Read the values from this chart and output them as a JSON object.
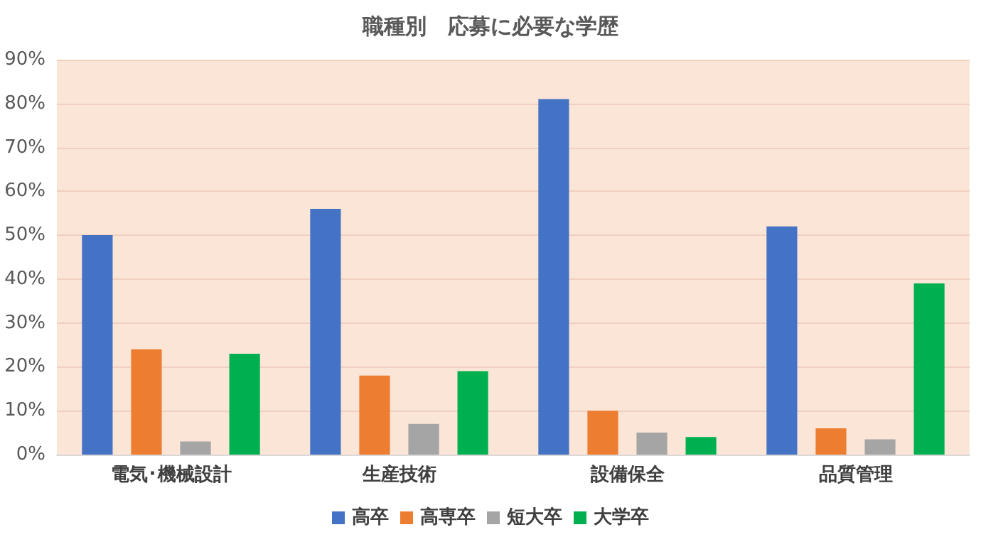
{
  "chart_data": {
    "type": "bar",
    "title": "職種別　応募に必要な学歴",
    "categories": [
      "電気･機械設計",
      "生産技術",
      "設備保全",
      "品質管理"
    ],
    "series": [
      {
        "name": "高卒",
        "color": "#4472c4",
        "values": [
          50,
          56,
          81,
          52
        ]
      },
      {
        "name": "高専卒",
        "color": "#ed7d31",
        "values": [
          24,
          18,
          10,
          6
        ]
      },
      {
        "name": "短大卒",
        "color": "#a5a5a5",
        "values": [
          3,
          7,
          5,
          3.5
        ]
      },
      {
        "name": "大学卒",
        "color": "#00b050",
        "values": [
          23,
          19,
          4,
          39
        ]
      }
    ],
    "ylim": [
      0,
      90
    ],
    "yticks": [
      {
        "value": 0,
        "label": "0%"
      },
      {
        "value": 10,
        "label": "10%"
      },
      {
        "value": 20,
        "label": "20%"
      },
      {
        "value": 30,
        "label": "30%"
      },
      {
        "value": 40,
        "label": "40%"
      },
      {
        "value": 50,
        "label": "50%"
      },
      {
        "value": 60,
        "label": "60%"
      },
      {
        "value": 70,
        "label": "70%"
      },
      {
        "value": 80,
        "label": "80%"
      },
      {
        "value": 90,
        "label": "90%"
      }
    ],
    "grid": true,
    "legend": "bottom"
  }
}
